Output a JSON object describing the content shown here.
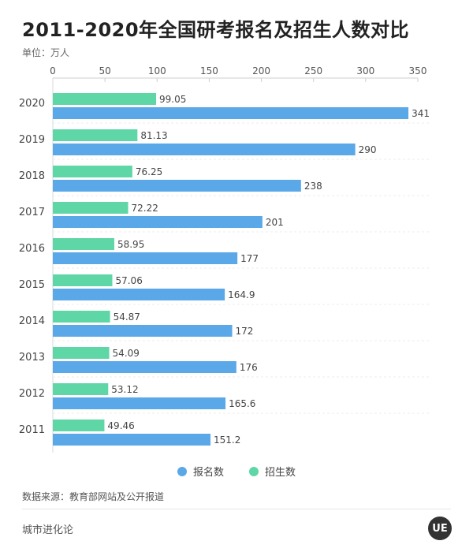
{
  "header": {
    "title": "2011-2020年全国研考报名及招生人数对比",
    "unit": "单位：万人"
  },
  "chart_data": {
    "type": "bar",
    "orientation": "horizontal",
    "title": "2011-2020年全国研考报名及招生人数对比",
    "ylabel": "",
    "xlabel": "单位：万人",
    "xlim": [
      0,
      350
    ],
    "xticks": [
      0,
      50,
      100,
      150,
      200,
      250,
      300,
      350
    ],
    "xaxis_position": "top",
    "grid": true,
    "legend_position": "bottom-center",
    "categories": [
      "2020",
      "2019",
      "2018",
      "2017",
      "2016",
      "2015",
      "2014",
      "2013",
      "2012",
      "2011"
    ],
    "series": [
      {
        "name": "招生数",
        "color": "#5fd6a6",
        "values": [
          99.05,
          81.13,
          76.25,
          72.22,
          58.95,
          57.06,
          54.87,
          54.09,
          53.12,
          49.46
        ],
        "labels": [
          "99.05",
          "81.13",
          "76.25",
          "72.22",
          "58.95",
          "57.06",
          "54.87",
          "54.09",
          "53.12",
          "49.46"
        ]
      },
      {
        "name": "报名数",
        "color": "#5ba8e8",
        "values": [
          341,
          290,
          238,
          201,
          177,
          164.9,
          172,
          176,
          165.6,
          151.2
        ],
        "labels": [
          "341",
          "290",
          "238",
          "201",
          "177",
          "164.9",
          "172",
          "176",
          "165.6",
          "151.2"
        ]
      }
    ]
  },
  "legend": {
    "items": [
      {
        "label": "报名数",
        "color": "#5ba8e8"
      },
      {
        "label": "招生数",
        "color": "#5fd6a6"
      }
    ]
  },
  "footer": {
    "source": "数据来源：教育部网站及公开报道",
    "brand": "城市进化论",
    "logo_text": "UE"
  }
}
